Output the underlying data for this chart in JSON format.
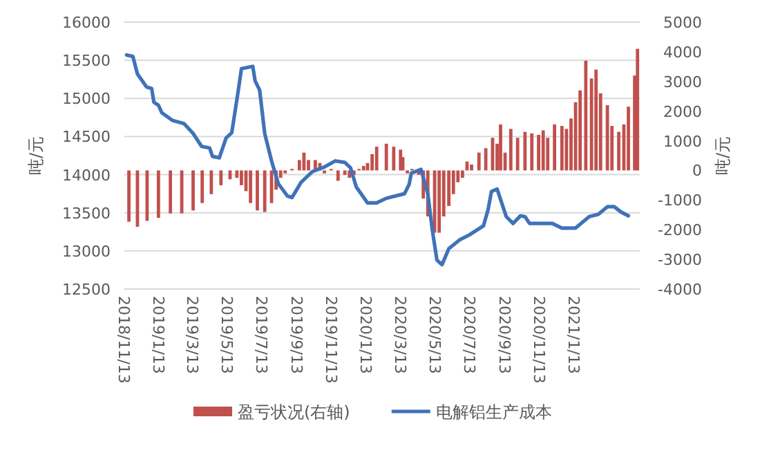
{
  "chart_data": {
    "type": "bar",
    "ylabel": "吨/元",
    "y2label": "吨/元",
    "ylim": [
      12500,
      16000
    ],
    "yticks": [
      12500,
      13000,
      13500,
      14000,
      14500,
      15000,
      15500,
      16000
    ],
    "y2lim": [
      -4000,
      5000
    ],
    "y2ticks": [
      -4000,
      -3000,
      -2000,
      -1000,
      0,
      1000,
      2000,
      3000,
      4000,
      5000
    ],
    "xlim": [
      "2018-11-13",
      "2021-05-08"
    ],
    "xticks": [
      {
        "value": "2018-11-13",
        "label": "2018/11/13"
      },
      {
        "value": "2019-01-13",
        "label": "2019/1/13"
      },
      {
        "value": "2019-03-13",
        "label": "2019/3/13"
      },
      {
        "value": "2019-05-13",
        "label": "2019/5/13"
      },
      {
        "value": "2019-07-13",
        "label": "2019/7/13"
      },
      {
        "value": "2019-09-13",
        "label": "2019/9/13"
      },
      {
        "value": "2019-11-13",
        "label": "2019/11/13"
      },
      {
        "value": "2020-01-13",
        "label": "2020/1/13"
      },
      {
        "value": "2020-03-13",
        "label": "2020/3/13"
      },
      {
        "value": "2020-05-13",
        "label": "2020/5/13"
      },
      {
        "value": "2020-07-13",
        "label": "2020/7/13"
      },
      {
        "value": "2020-09-13",
        "label": "2020/9/13"
      },
      {
        "value": "2020-11-13",
        "label": "2020/11/13"
      },
      {
        "value": "2021-01-13",
        "label": "2021/1/13"
      }
    ],
    "grid": "y",
    "legend": "bottom",
    "series": [
      {
        "name": "盈亏状况(右轴)",
        "axis": "y2",
        "color": "#c0504d",
        "x": [
          "2018-11-21",
          "2018-12-06",
          "2018-12-23",
          "2019-01-12",
          "2019-02-02",
          "2019-02-22",
          "2019-03-14",
          "2019-03-30",
          "2019-04-15",
          "2019-05-02",
          "2019-05-18",
          "2019-05-30",
          "2019-06-07",
          "2019-06-15",
          "2019-06-23",
          "2019-07-05",
          "2019-07-18",
          "2019-07-30",
          "2019-08-07",
          "2019-08-15",
          "2019-08-23",
          "2019-09-04",
          "2019-09-17",
          "2019-09-25",
          "2019-10-03",
          "2019-10-15",
          "2019-10-23",
          "2019-10-31",
          "2019-11-12",
          "2019-11-24",
          "2019-12-06",
          "2019-12-14",
          "2019-12-22",
          "2019-12-31",
          "2020-01-08",
          "2020-01-15",
          "2020-01-23",
          "2020-01-31",
          "2020-02-17",
          "2020-03-01",
          "2020-03-13",
          "2020-03-17",
          "2020-03-25",
          "2020-04-02",
          "2020-04-14",
          "2020-04-22",
          "2020-04-30",
          "2020-05-12",
          "2020-05-20",
          "2020-05-28",
          "2020-06-06",
          "2020-06-14",
          "2020-06-22",
          "2020-06-30",
          "2020-07-08",
          "2020-07-16",
          "2020-07-29",
          "2020-08-10",
          "2020-08-22",
          "2020-08-30",
          "2020-09-05",
          "2020-09-13",
          "2020-09-23",
          "2020-10-05",
          "2020-10-18",
          "2020-10-30",
          "2020-11-11",
          "2020-11-19",
          "2020-11-27",
          "2020-12-09",
          "2020-12-22",
          "2020-12-30",
          "2021-01-07",
          "2021-01-15",
          "2021-01-23",
          "2021-02-02",
          "2021-02-12",
          "2021-02-20",
          "2021-02-28",
          "2021-03-12",
          "2021-03-20",
          "2021-04-01",
          "2021-04-10",
          "2021-04-18",
          "2021-04-29",
          "2021-05-04"
        ],
        "values": [
          -1730,
          -1900,
          -1700,
          -1600,
          -1450,
          -1450,
          -1350,
          -1100,
          -800,
          -500,
          -300,
          -250,
          -500,
          -700,
          -1100,
          -1350,
          -1400,
          -1100,
          -650,
          -250,
          -100,
          50,
          350,
          600,
          350,
          350,
          250,
          -100,
          50,
          -350,
          -150,
          -250,
          -150,
          50,
          150,
          250,
          550,
          800,
          900,
          800,
          700,
          450,
          -100,
          50,
          -150,
          -950,
          -1550,
          -2100,
          -2100,
          -1550,
          -1200,
          -800,
          -400,
          -250,
          300,
          200,
          600,
          750,
          1100,
          900,
          1550,
          600,
          1400,
          1100,
          1300,
          1250,
          1200,
          1350,
          1100,
          1550,
          1500,
          1400,
          1750,
          2300,
          2700,
          3700,
          3100,
          3400,
          2600,
          2200,
          1500,
          1300,
          1550,
          2150,
          3200,
          4100
        ]
      },
      {
        "name": "电解铝生产成本",
        "type": "line",
        "color": "#4072b8",
        "x": [
          "2018-11-17",
          "2018-11-28",
          "2018-12-06",
          "2018-12-22",
          "2018-12-31",
          "2019-01-04",
          "2019-01-12",
          "2019-01-18",
          "2019-02-06",
          "2019-02-26",
          "2019-03-14",
          "2019-03-29",
          "2019-04-12",
          "2019-04-17",
          "2019-04-29",
          "2019-05-11",
          "2019-05-21",
          "2019-06-01",
          "2019-06-07",
          "2019-06-27",
          "2019-07-01",
          "2019-07-09",
          "2019-07-18",
          "2019-07-30",
          "2019-08-11",
          "2019-08-27",
          "2019-09-04",
          "2019-09-20",
          "2019-10-10",
          "2019-10-31",
          "2019-11-19",
          "2019-12-06",
          "2019-12-16",
          "2019-12-26",
          "2020-01-15",
          "2020-01-31",
          "2020-02-17",
          "2020-03-20",
          "2020-03-28",
          "2020-04-01",
          "2020-04-18",
          "2020-04-30",
          "2020-05-08",
          "2020-05-16",
          "2020-05-25",
          "2020-06-06",
          "2020-06-26",
          "2020-07-12",
          "2020-08-06",
          "2020-08-14",
          "2020-08-20",
          "2020-08-30",
          "2020-09-07",
          "2020-09-15",
          "2020-09-27",
          "2020-10-10",
          "2020-10-18",
          "2020-10-26",
          "2020-12-05",
          "2020-12-22",
          "2021-01-15",
          "2021-02-08",
          "2021-02-24",
          "2021-03-12",
          "2021-03-24",
          "2021-04-05",
          "2021-04-18"
        ],
        "values": [
          15570,
          15550,
          15320,
          15150,
          15130,
          14950,
          14910,
          14810,
          14710,
          14670,
          14540,
          14370,
          14350,
          14240,
          14220,
          14480,
          14550,
          15080,
          15390,
          15420,
          15230,
          15110,
          14540,
          14180,
          13880,
          13720,
          13700,
          13900,
          14040,
          14100,
          14180,
          14160,
          14090,
          13840,
          13630,
          13630,
          13690,
          13750,
          13870,
          14020,
          14070,
          13750,
          13270,
          12880,
          12820,
          13030,
          13150,
          13210,
          13330,
          13540,
          13780,
          13810,
          13630,
          13450,
          13360,
          13460,
          13450,
          13360,
          13360,
          13300,
          13300,
          13450,
          13480,
          13580,
          13580,
          13510,
          13460
        ]
      }
    ]
  }
}
